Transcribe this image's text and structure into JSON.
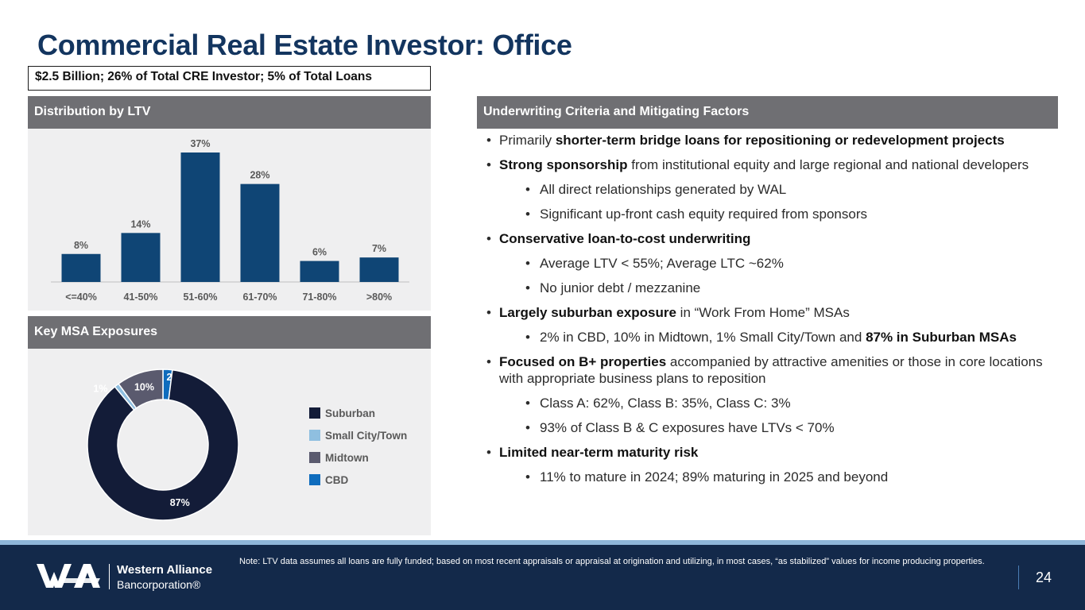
{
  "title": "Commercial Real Estate Investor: Office",
  "summary": "$2.5 Billion; 26% of Total CRE Investor; 5% of Total Loans",
  "panels": {
    "ltv_header": "Distribution by LTV",
    "msa_header": "Key MSA Exposures",
    "criteria_header": "Underwriting Criteria and Mitigating Factors"
  },
  "colors": {
    "bar": "#0f4575",
    "suburban": "#131c38",
    "small_city": "#8fbfe0",
    "midtown": "#5a5a6e",
    "cbd": "#0f6cbd"
  },
  "chart_data": [
    {
      "type": "bar",
      "title": "Distribution by LTV",
      "categories": [
        "<=40%",
        "41-50%",
        "51-60%",
        "61-70%",
        "71-80%",
        ">80%"
      ],
      "values": [
        8,
        14,
        37,
        28,
        6,
        7
      ],
      "labels": [
        "8%",
        "14%",
        "37%",
        "28%",
        "6%",
        "7%"
      ],
      "ylim": [
        0,
        37
      ]
    },
    {
      "type": "pie",
      "title": "Key MSA Exposures",
      "slices": [
        {
          "name": "CBD",
          "value": 2,
          "label": "2%"
        },
        {
          "name": "Suburban",
          "value": 87,
          "label": "87%"
        },
        {
          "name": "Small City/Town",
          "value": 1,
          "label": "1%"
        },
        {
          "name": "Midtown",
          "value": 10,
          "label": "10%"
        }
      ],
      "legend": [
        "Suburban",
        "Small City/Town",
        "Midtown",
        "CBD"
      ]
    }
  ],
  "bullets": [
    {
      "level": 1,
      "parts": [
        {
          "t": "Primarily ",
          "b": false
        },
        {
          "t": "shorter-term bridge loans for repositioning or redevelopment projects",
          "b": true
        }
      ]
    },
    {
      "level": 1,
      "parts": [
        {
          "t": "Strong sponsorship",
          "b": true
        },
        {
          "t": " from institutional equity and large regional and national developers",
          "b": false
        }
      ]
    },
    {
      "level": 2,
      "parts": [
        {
          "t": "All direct relationships generated by WAL",
          "b": false
        }
      ]
    },
    {
      "level": 2,
      "parts": [
        {
          "t": "Significant up-front cash equity required from sponsors",
          "b": false
        }
      ]
    },
    {
      "level": 1,
      "parts": [
        {
          "t": "Conservative loan-to-cost underwriting",
          "b": true
        }
      ]
    },
    {
      "level": 2,
      "parts": [
        {
          "t": "Average LTV < 55%; Average LTC ~62%",
          "b": false
        }
      ]
    },
    {
      "level": 2,
      "parts": [
        {
          "t": "No junior debt / mezzanine",
          "b": false
        }
      ]
    },
    {
      "level": 1,
      "parts": [
        {
          "t": "Largely suburban exposure",
          "b": true
        },
        {
          "t": " in “Work From Home” MSAs",
          "b": false
        }
      ]
    },
    {
      "level": 2,
      "parts": [
        {
          "t": "2% in CBD, 10% in Midtown, 1% Small City/Town and ",
          "b": false
        },
        {
          "t": "87% in Suburban MSAs",
          "b": true
        }
      ]
    },
    {
      "level": 1,
      "parts": [
        {
          "t": "Focused on B+ properties",
          "b": true
        },
        {
          "t": " accompanied by attractive amenities or those in core locations with appropriate business plans to reposition",
          "b": false
        }
      ]
    },
    {
      "level": 2,
      "parts": [
        {
          "t": "Class A: 62%, Class B: 35%, Class C: 3%",
          "b": false
        }
      ]
    },
    {
      "level": 2,
      "parts": [
        {
          "t": "93% of Class B & C exposures have LTVs < 70%",
          "b": false
        }
      ]
    },
    {
      "level": 1,
      "parts": [
        {
          "t": "Limited near-term maturity risk",
          "b": true
        }
      ]
    },
    {
      "level": 2,
      "parts": [
        {
          "t": "11% to mature in 2024; 89% maturing in 2025 and beyond",
          "b": false
        }
      ]
    }
  ],
  "bullet_symbol": "•",
  "footer": {
    "company_line1": "Western Alliance",
    "company_line2": "Bancorporation®",
    "note": "Note: LTV data assumes all loans are fully funded; based on most recent appraisals or appraisal at origination and utilizing, in most cases, “as stabilized” values for income producing properties.",
    "page_number": "24"
  }
}
